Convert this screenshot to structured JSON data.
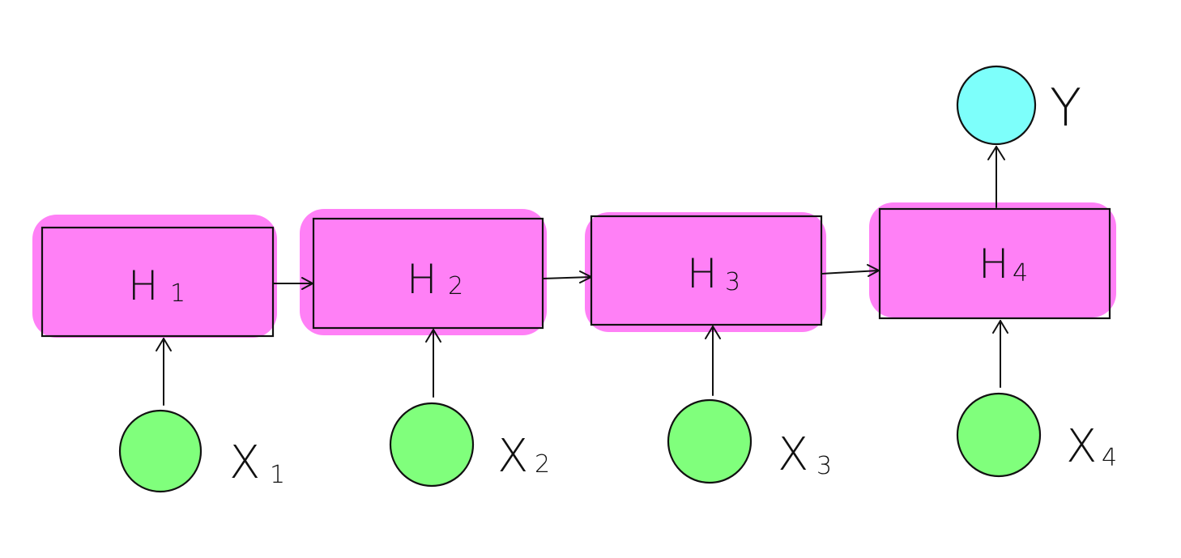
{
  "colors": {
    "hidden_fill": "#ff80f6",
    "input_fill": "#80ff7c",
    "output_fill": "#7dfffb",
    "stroke": "#111111",
    "background": "#ffffff"
  },
  "hidden_states": [
    {
      "letter": "H",
      "sub": "1"
    },
    {
      "letter": "H",
      "sub": "2"
    },
    {
      "letter": "H",
      "sub": "3"
    },
    {
      "letter": "H",
      "sub": "4"
    }
  ],
  "inputs": [
    {
      "letter": "X",
      "sub": "1"
    },
    {
      "letter": "X",
      "sub": "2"
    },
    {
      "letter": "X",
      "sub": "3"
    },
    {
      "letter": "X",
      "sub": "4"
    }
  ],
  "output": {
    "label": "Y"
  }
}
